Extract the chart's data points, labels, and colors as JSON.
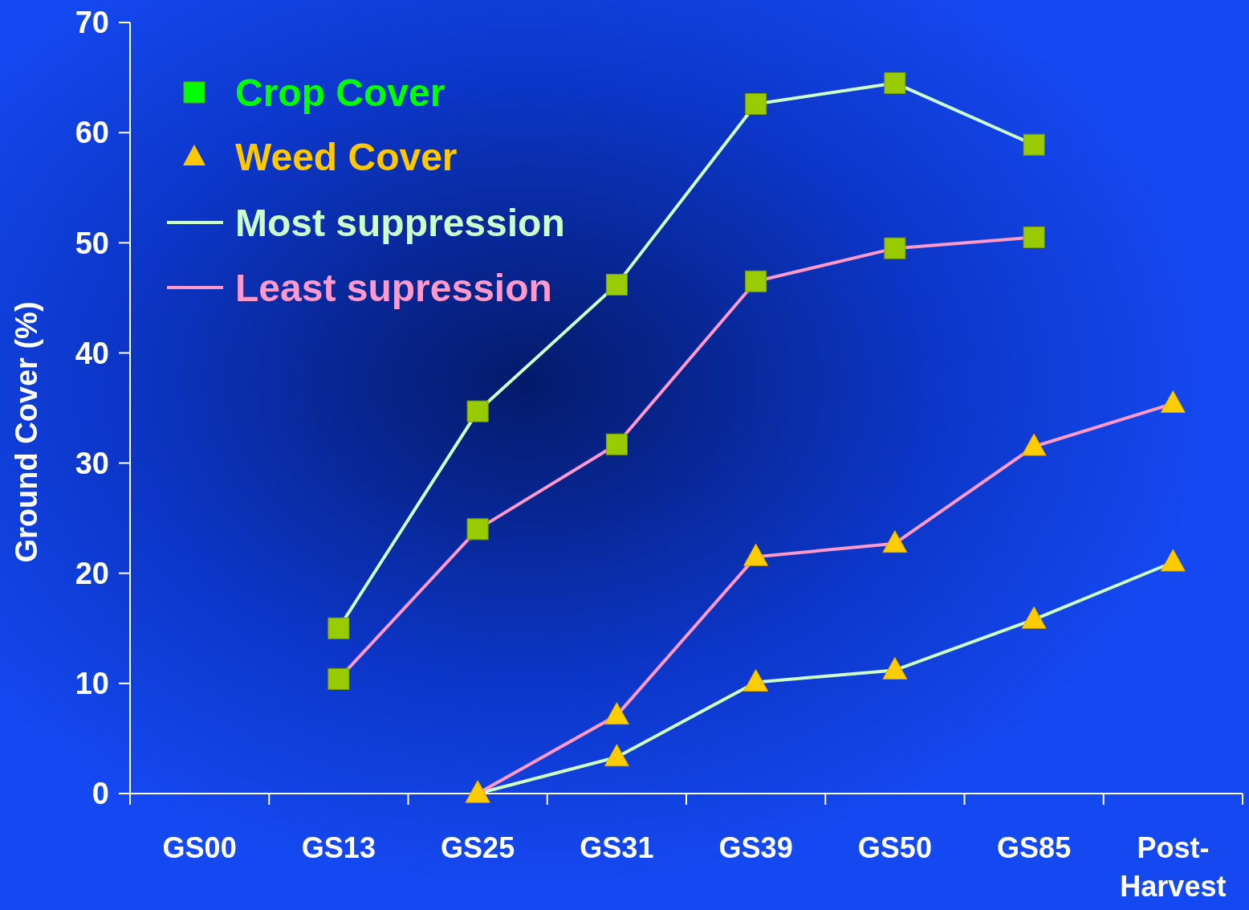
{
  "chart_data": {
    "type": "line",
    "ylabel": "Ground Cover (%)",
    "categories": [
      "GS00",
      "GS13",
      "GS25",
      "GS31",
      "GS39",
      "GS50",
      "GS85",
      "Post-Harvest"
    ],
    "ylim": [
      0,
      70
    ],
    "yticks": [
      0,
      10,
      20,
      30,
      40,
      50,
      60,
      70
    ],
    "line_style": "solid",
    "annotations": [
      "Crop Cover",
      "Weed Cover",
      "Most suppression",
      "Least supression"
    ],
    "series": [
      {
        "color": "#ccffcc",
        "marker": "square",
        "colors": [
          null,
          "#99cc00",
          "#99cc00",
          "#99cc00",
          "#99cc00",
          "#99cc00",
          "#99cc00",
          null
        ],
        "values": [
          null,
          15,
          34.7,
          46.2,
          62.6,
          64.5,
          58.9,
          null
        ]
      },
      {
        "color": "#ff99cc",
        "marker": "square",
        "colors": [
          null,
          "#99cc00",
          "#99cc00",
          "#99cc00",
          "#99cc00",
          "#99cc00",
          "#99cc00",
          null
        ],
        "values": [
          null,
          10.4,
          24,
          31.7,
          46.5,
          49.5,
          50.5,
          null
        ]
      },
      {
        "color": "#ccffcc",
        "marker": "triangle",
        "colors": [
          null,
          null,
          "#ffcc00",
          "#ffcc00",
          "#ffcc00",
          "#ffcc00",
          "#ffcc00",
          "#ffcc00"
        ],
        "values": [
          null,
          null,
          0,
          3.3,
          10.1,
          11.2,
          15.8,
          21
        ]
      },
      {
        "color": "#ff99cc",
        "marker": "triangle",
        "colors": [
          null,
          null,
          "#ffcc00",
          "#ffcc00",
          "#ffcc00",
          "#ffcc00",
          "#ffcc00",
          "#ffcc00"
        ],
        "values": [
          null,
          null,
          0,
          7.1,
          21.5,
          22.7,
          31.5,
          35.4
        ]
      }
    ]
  }
}
